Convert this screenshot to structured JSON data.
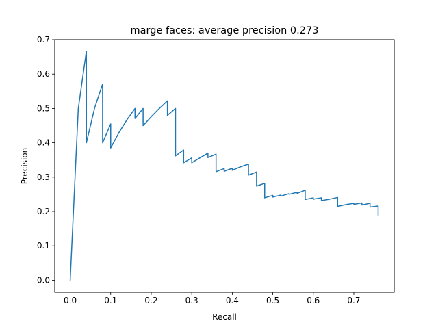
{
  "chart_data": {
    "type": "line",
    "title": "marge faces: average precision 0.273",
    "xlabel": "Recall",
    "ylabel": "Precision",
    "xlim": [
      -0.0381,
      0.7997
    ],
    "ylim": [
      -0.035,
      0.7
    ],
    "xticks": [
      0.0,
      0.1,
      0.2,
      0.3,
      0.4,
      0.5,
      0.6,
      0.7
    ],
    "xtick_labels": [
      "0.0",
      "0.1",
      "0.2",
      "0.3",
      "0.4",
      "0.5",
      "0.6",
      "0.7"
    ],
    "yticks": [
      0.0,
      0.1,
      0.2,
      0.3,
      0.4,
      0.5,
      0.6,
      0.7
    ],
    "ytick_labels": [
      "0.0",
      "0.1",
      "0.2",
      "0.3",
      "0.4",
      "0.5",
      "0.6",
      "0.7"
    ],
    "grid": false,
    "series": [
      {
        "color": "#1f77b4",
        "x": [
          0.0,
          0.02,
          0.04,
          0.04,
          0.06,
          0.08,
          0.08,
          0.1,
          0.1,
          0.12,
          0.14,
          0.16,
          0.16,
          0.18,
          0.18,
          0.2,
          0.22,
          0.24,
          0.24,
          0.26,
          0.26,
          0.28,
          0.28,
          0.3,
          0.3,
          0.32,
          0.34,
          0.34,
          0.36,
          0.36,
          0.38,
          0.38,
          0.4,
          0.4,
          0.42,
          0.44,
          0.44,
          0.46,
          0.46,
          0.48,
          0.48,
          0.5,
          0.5,
          0.52,
          0.52,
          0.54,
          0.54,
          0.56,
          0.56,
          0.58,
          0.58,
          0.6,
          0.6,
          0.62,
          0.62,
          0.64,
          0.66,
          0.66,
          0.68,
          0.7,
          0.7,
          0.72,
          0.72,
          0.74,
          0.74,
          0.76,
          0.76
        ],
        "y": [
          0.0,
          0.5,
          0.667,
          0.4,
          0.5,
          0.571,
          0.4,
          0.455,
          0.385,
          0.429,
          0.467,
          0.5,
          0.471,
          0.5,
          0.45,
          0.476,
          0.5,
          0.522,
          0.48,
          0.5,
          0.362,
          0.379,
          0.342,
          0.356,
          0.342,
          0.356,
          0.37,
          0.357,
          0.367,
          0.316,
          0.325,
          0.317,
          0.326,
          0.32,
          0.33,
          0.338,
          0.306,
          0.315,
          0.274,
          0.282,
          0.24,
          0.247,
          0.242,
          0.248,
          0.245,
          0.252,
          0.25,
          0.256,
          0.253,
          0.262,
          0.235,
          0.24,
          0.236,
          0.24,
          0.232,
          0.236,
          0.241,
          0.215,
          0.22,
          0.224,
          0.221,
          0.225,
          0.219,
          0.224,
          0.213,
          0.216,
          0.19
        ]
      }
    ]
  }
}
